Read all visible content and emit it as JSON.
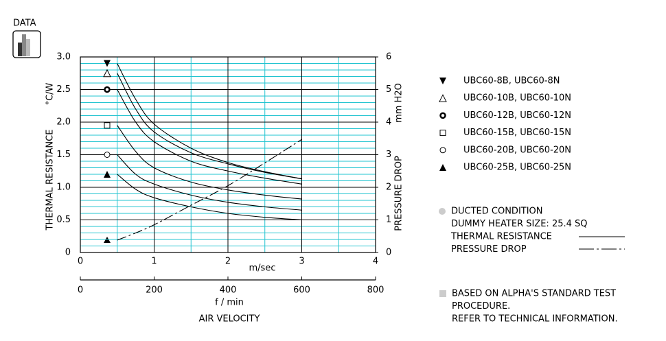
{
  "icon_label": "DATA",
  "chart_data": {
    "type": "line",
    "x": [
      0.5,
      0.75,
      1,
      1.5,
      2,
      2.5,
      3
    ],
    "xlim": [
      0,
      4
    ],
    "xticks": [
      0,
      1,
      2,
      3,
      4
    ],
    "xlabel": "m/sec",
    "x2lim": [
      0,
      800
    ],
    "x2ticks": [
      0,
      200,
      400,
      600,
      800
    ],
    "x2label": "f / min",
    "axis_title": "AIR VELOCITY",
    "ylim": [
      0,
      3
    ],
    "yticks": [
      0,
      {
        "value": 0.5,
        "label": "0.5"
      },
      {
        "value": 1,
        "label": "1.0"
      },
      {
        "value": 1.5,
        "label": "1.5"
      },
      {
        "value": 2,
        "label": "2.0"
      },
      {
        "value": 2.5,
        "label": "2.5"
      },
      {
        "value": 3,
        "label": "3.0"
      }
    ],
    "ylabel": "THERMAL  RESISTANCE",
    "yunit": "°C/W",
    "y2lim": [
      0,
      6
    ],
    "y2ticks": [
      0,
      1,
      2,
      3,
      4,
      5,
      6
    ],
    "y2label": "PRESSURE  DROP",
    "y2unit": "mm H2O",
    "grid": true,
    "minor_ygrid_step": 0.1,
    "minor_xgrid_step": 0.5,
    "grid_color": "#22c4d0",
    "series": [
      {
        "name": "UBC60-8B,  UBC60-8N",
        "marker": "filled-triangle-down",
        "color": "#000000",
        "values": [
          2.9,
          2.35,
          1.97,
          1.6,
          1.38,
          1.24,
          1.13
        ]
      },
      {
        "name": "UBC60-10B, UBC60-10N",
        "marker": "triangle-up",
        "color": "#000000",
        "values": [
          2.75,
          2.2,
          1.85,
          1.53,
          1.36,
          1.23,
          1.13
        ]
      },
      {
        "name": "UBC60-12B, UBC60-12N",
        "marker": "bold-circle",
        "color": "#000000",
        "values": [
          2.5,
          2.0,
          1.7,
          1.4,
          1.25,
          1.14,
          1.05
        ]
      },
      {
        "name": "UBC60-15B, UBC60-15N",
        "marker": "square",
        "color": "#000000",
        "values": [
          1.95,
          1.55,
          1.3,
          1.08,
          0.96,
          0.88,
          0.82
        ]
      },
      {
        "name": "UBC60-20B, UBC60-20N",
        "marker": "circle",
        "color": "#000000",
        "values": [
          1.5,
          1.2,
          1.05,
          0.88,
          0.77,
          0.7,
          0.65
        ]
      },
      {
        "name": "UBC60-25B, UBC60-25N",
        "marker": "filled-triangle-up",
        "color": "#000000",
        "values": [
          1.2,
          0.97,
          0.84,
          0.7,
          0.6,
          0.54,
          0.5
        ]
      },
      {
        "name": "PRESSURE DROP",
        "axis": "y2",
        "line_style": "dash-dot",
        "color": "#000000",
        "values": [
          0.38,
          0.6,
          0.85,
          1.45,
          2.05,
          2.75,
          3.47
        ]
      }
    ],
    "notes": [
      "DUCTED CONDITION",
      "DUMMY HEATER SIZE: 25.4 SQ",
      "THERMAL RESISTANCE",
      "PRESSURE DROP"
    ],
    "footnote": [
      "BASED ON ALPHA'S STANDARD TEST",
      "PROCEDURE.",
      "REFER TO TECHNICAL INFORMATION."
    ]
  }
}
